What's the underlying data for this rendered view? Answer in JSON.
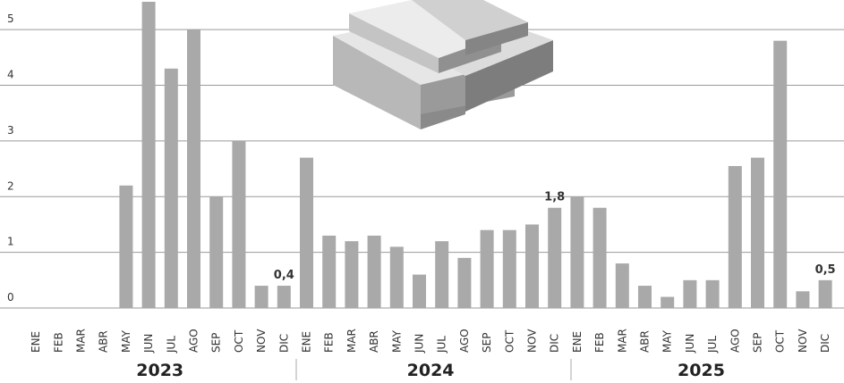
{
  "chart_data": {
    "type": "bar",
    "categories": [
      "ENE",
      "FEB",
      "MAR",
      "ABR",
      "MAY",
      "JUN",
      "JUL",
      "AGO",
      "SEP",
      "OCT",
      "NOV",
      "DIC",
      "ENE",
      "FEB",
      "MAR",
      "ABR",
      "MAY",
      "JUN",
      "JUL",
      "AGO",
      "SEP",
      "OCT",
      "NOV",
      "DIC",
      "ENE",
      "FEB",
      "MAR",
      "ABR",
      "MAY",
      "JUN",
      "JUL",
      "AGO",
      "SEP",
      "OCT",
      "NOV",
      "DIC"
    ],
    "values": [
      null,
      null,
      null,
      null,
      2.2,
      5.5,
      4.3,
      5.0,
      2.0,
      3.0,
      0.4,
      0.4,
      2.7,
      1.3,
      1.2,
      1.3,
      1.1,
      0.6,
      1.2,
      0.9,
      1.4,
      1.4,
      1.5,
      1.8,
      2.0,
      1.8,
      0.8,
      0.4,
      0.2,
      0.5,
      0.5,
      2.55,
      2.7,
      4.8,
      0.3,
      0.5
    ],
    "value_labels": [
      null,
      null,
      null,
      null,
      null,
      null,
      null,
      null,
      null,
      null,
      null,
      "0,4",
      null,
      null,
      null,
      null,
      null,
      null,
      null,
      null,
      null,
      null,
      null,
      "1,8",
      null,
      null,
      null,
      null,
      null,
      null,
      null,
      null,
      null,
      null,
      null,
      "0,5"
    ],
    "year_labels": [
      "2023",
      "2024",
      "2025"
    ],
    "color": "#a9a9a9",
    "ylim": [
      0,
      5.5
    ],
    "yticks": [
      0,
      1,
      2,
      3,
      4,
      5
    ],
    "grid": true
  }
}
